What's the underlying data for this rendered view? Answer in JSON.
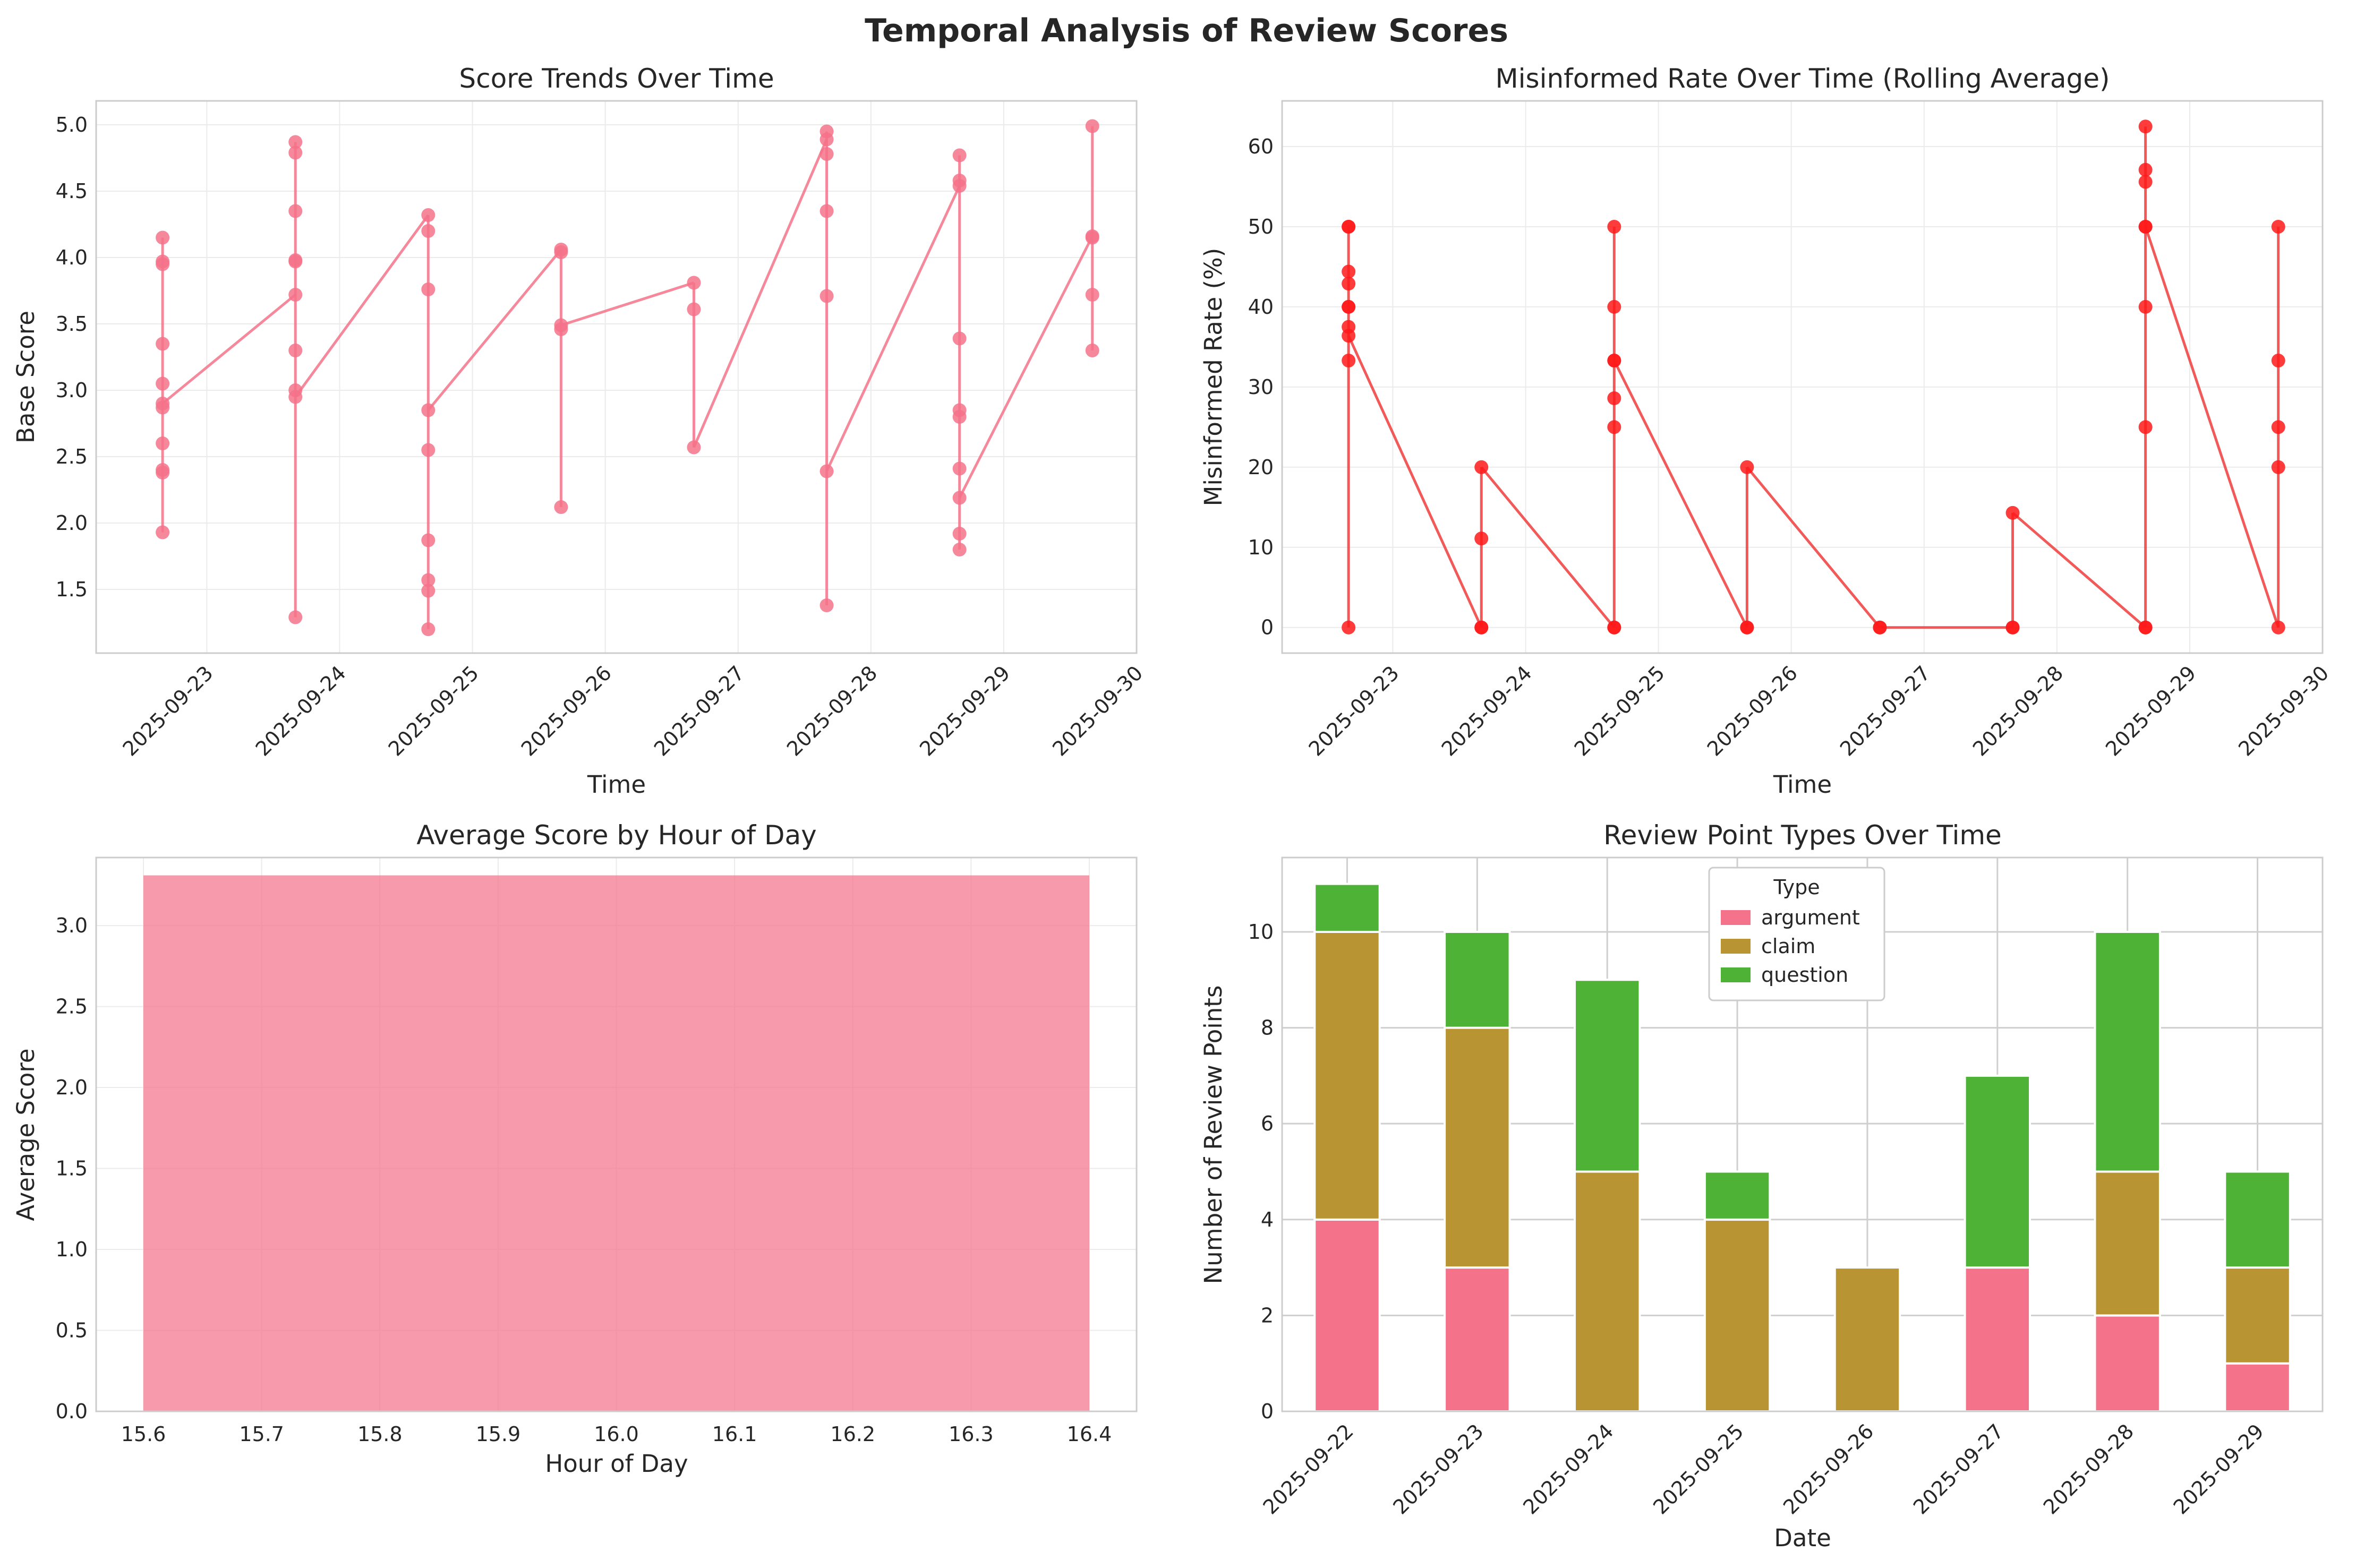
{
  "figure": {
    "title": "Temporal Analysis of Review Scores"
  },
  "colors": {
    "pink": "#f4738a",
    "red": "#ff1a1a",
    "red_line": "#f03c3c",
    "argument": "#f4738a",
    "claim": "#b89532",
    "question": "#4db235",
    "grid": "#ebebeb",
    "spine": "#cccccc"
  },
  "chart_data": [
    {
      "type": "scatter",
      "title": "Score Trends Over Time",
      "xlabel": "Time",
      "ylabel": "Base Score",
      "x_ticks": [
        "2025-09-23",
        "2025-09-24",
        "2025-09-25",
        "2025-09-26",
        "2025-09-27",
        "2025-09-28",
        "2025-09-29",
        "2025-09-30"
      ],
      "xlim": [
        "2025-09-22T04:00",
        "2025-09-30T00:00"
      ],
      "ylim": [
        1.02,
        5.18
      ],
      "y_ticks": [
        "1.5",
        "2.0",
        "2.5",
        "3.0",
        "3.5",
        "4.0",
        "4.5",
        "5.0"
      ],
      "series": [
        {
          "points": [
            {
              "x": "2025-09-22",
              "ys": [
                4.15,
                3.97,
                3.95,
                3.35,
                3.05,
                2.9,
                2.87,
                2.6,
                2.4,
                2.38,
                1.93
              ],
              "line_end": 2.9
            },
            {
              "x": "2025-09-23",
              "ys": [
                4.87,
                4.79,
                4.35,
                3.98,
                3.97,
                3.72,
                3.3,
                3.0,
                2.95,
                1.29
              ],
              "line_start": 3.72,
              "line_end": 2.95
            },
            {
              "x": "2025-09-24",
              "ys": [
                4.32,
                4.2,
                3.76,
                2.85,
                2.55,
                1.87,
                1.57,
                1.49,
                1.2
              ],
              "line_start": 4.32,
              "line_end": 2.85
            },
            {
              "x": "2025-09-25",
              "ys": [
                4.06,
                4.04,
                3.49,
                3.46,
                2.12
              ],
              "line_start": 4.06,
              "line_end": 3.49
            },
            {
              "x": "2025-09-26",
              "ys": [
                3.81,
                3.61,
                2.57
              ],
              "line_start": 3.81,
              "line_end": 2.57
            },
            {
              "x": "2025-09-27",
              "ys": [
                4.95,
                4.89,
                4.78,
                4.35,
                3.71,
                2.39,
                1.38
              ],
              "line_start": 4.89,
              "line_end": 2.39
            },
            {
              "x": "2025-09-28",
              "ys": [
                4.77,
                4.58,
                4.54,
                3.39,
                2.85,
                2.8,
                2.41,
                2.19,
                1.92,
                1.8
              ],
              "line_start": 4.54,
              "line_end": 2.19
            },
            {
              "x": "2025-09-29",
              "ys": [
                4.99,
                4.16,
                4.15,
                3.72,
                3.3
              ],
              "line_start": 4.16
            }
          ]
        }
      ]
    },
    {
      "type": "line",
      "title": "Misinformed Rate Over Time (Rolling Average)",
      "xlabel": "Time",
      "ylabel": "Misinformed Rate (%)",
      "x_ticks": [
        "2025-09-23",
        "2025-09-24",
        "2025-09-25",
        "2025-09-26",
        "2025-09-27",
        "2025-09-28",
        "2025-09-29",
        "2025-09-30"
      ],
      "xlim": [
        "2025-09-22T04:00",
        "2025-09-30T00:00"
      ],
      "ylim": [
        -3.2,
        65.7
      ],
      "y_ticks": [
        "0",
        "10",
        "20",
        "30",
        "40",
        "50",
        "60"
      ],
      "series": [
        {
          "points": [
            {
              "x": "2025-09-22",
              "ys": [
                50,
                50,
                44.4,
                42.9,
                40,
                40,
                37.5,
                36.4,
                33.3,
                0
              ],
              "line_start": 0,
              "line_end": 36.4
            },
            {
              "x": "2025-09-23",
              "ys": [
                20,
                11.1,
                0,
                0
              ],
              "line_start": 0,
              "line_end": 20
            },
            {
              "x": "2025-09-24",
              "ys": [
                50,
                40,
                33.3,
                33.3,
                28.6,
                25,
                0,
                0
              ],
              "line_start": 0,
              "line_end": 33.3
            },
            {
              "x": "2025-09-25",
              "ys": [
                20,
                0,
                0
              ],
              "line_start": 0,
              "line_end": 20
            },
            {
              "x": "2025-09-26",
              "ys": [
                0,
                0
              ],
              "line_start": 0,
              "line_end": 0
            },
            {
              "x": "2025-09-27",
              "ys": [
                14.3,
                0,
                0
              ],
              "line_start": 0,
              "line_end": 14.3
            },
            {
              "x": "2025-09-28",
              "ys": [
                62.5,
                57.1,
                55.6,
                50,
                50,
                40,
                25,
                0,
                0
              ],
              "line_start": 0,
              "line_end": 50
            },
            {
              "x": "2025-09-29",
              "ys": [
                50,
                33.3,
                25,
                20,
                0
              ],
              "line_start": 0,
              "line_end": 50
            }
          ]
        }
      ]
    },
    {
      "type": "bar",
      "title": "Average Score by Hour of Day",
      "xlabel": "Hour of Day",
      "ylabel": "Average Score",
      "xlim": [
        15.56,
        16.44
      ],
      "ylim": [
        0,
        3.42
      ],
      "x_ticks": [
        "15.6",
        "15.7",
        "15.8",
        "15.9",
        "16.0",
        "16.1",
        "16.2",
        "16.3",
        "16.4"
      ],
      "y_ticks": [
        "0.0",
        "0.5",
        "1.0",
        "1.5",
        "2.0",
        "2.5",
        "3.0"
      ],
      "categories": [
        16
      ],
      "values": [
        3.31
      ]
    },
    {
      "type": "bar",
      "title": "Review Point Types Over Time",
      "xlabel": "Date",
      "ylabel": "Number of Review Points",
      "ylim": [
        0,
        11.55
      ],
      "y_ticks": [
        "0",
        "2",
        "4",
        "6",
        "8",
        "10"
      ],
      "categories": [
        "2025-09-22",
        "2025-09-23",
        "2025-09-24",
        "2025-09-25",
        "2025-09-26",
        "2025-09-27",
        "2025-09-28",
        "2025-09-29"
      ],
      "legend": {
        "title": "Type",
        "placement": "top-center"
      },
      "series": [
        {
          "name": "argument",
          "values": [
            4,
            3,
            0,
            0,
            0,
            3,
            2,
            1
          ]
        },
        {
          "name": "claim",
          "values": [
            6,
            5,
            5,
            4,
            3,
            0,
            3,
            2
          ]
        },
        {
          "name": "question",
          "values": [
            1,
            2,
            4,
            1,
            0,
            4,
            5,
            2
          ]
        }
      ]
    }
  ]
}
